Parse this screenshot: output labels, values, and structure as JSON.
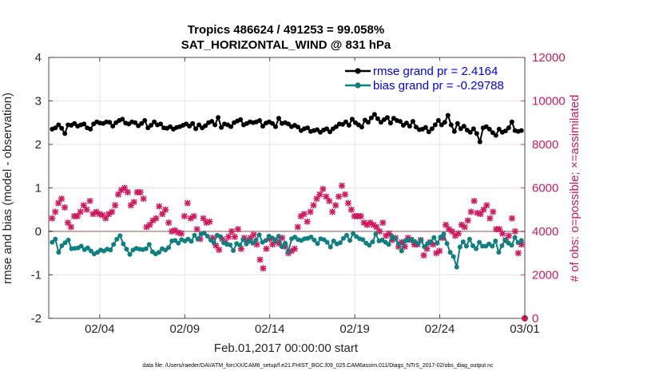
{
  "chart_data": {
    "type": "line",
    "title_line1": "Tropics 486624 / 491253 = 99.058%",
    "title_line2": "SAT_HORIZONTAL_WIND @ 831 hPa",
    "xlabel": "Feb.01,2017 00:00:00 start",
    "ylabel_left": "rmse and bias (model - observation)",
    "ylabel_right": "# of obs: o=possible; ×=assimilated",
    "footer": "data file: /Users/raeder/DAI/ATM_forcXX/CAM6_setup/f.e21.FHIST_BGC.f09_025.CAM6assim.011/Diags_NTrS_2017-02/obs_diag_output.nc",
    "x_ticks": [
      "02/04",
      "02/09",
      "02/14",
      "02/19",
      "02/24",
      "03/01"
    ],
    "x_tick_positions_days": [
      3,
      8,
      13,
      18,
      23,
      28
    ],
    "xlim_days": [
      0,
      28
    ],
    "ylim_left": [
      -2,
      4
    ],
    "y_ticks_left": [
      "-2",
      "-1",
      "0",
      "1",
      "2",
      "3",
      "4"
    ],
    "ylim_right": [
      0,
      12000
    ],
    "y_ticks_right": [
      "0",
      "2000",
      "4000",
      "6000",
      "8000",
      "10000",
      "12000"
    ],
    "colors": {
      "rmse": "#000000",
      "bias": "#0f7f80",
      "obs": "#d11a5e",
      "zero_line": "#c9a9a9",
      "legend_text": "#0000ff"
    },
    "series": [
      {
        "name": "rmse grand pr = 2.4164",
        "axis": "left",
        "values": [
          2.35,
          2.38,
          2.45,
          2.37,
          2.25,
          2.45,
          2.44,
          2.48,
          2.42,
          2.45,
          2.47,
          2.38,
          2.35,
          2.47,
          2.52,
          2.49,
          2.48,
          2.52,
          2.51,
          2.42,
          2.5,
          2.55,
          2.58,
          2.49,
          2.47,
          2.52,
          2.5,
          2.43,
          2.48,
          2.55,
          2.38,
          2.44,
          2.52,
          2.45,
          2.47,
          2.38,
          2.37,
          2.41,
          2.35,
          2.39,
          2.41,
          2.44,
          2.47,
          2.42,
          2.48,
          2.36,
          2.45,
          2.38,
          2.43,
          2.5,
          2.53,
          2.45,
          2.62,
          2.39,
          2.47,
          2.45,
          2.41,
          2.5,
          2.54,
          2.57,
          2.45,
          2.48,
          2.52,
          2.5,
          2.52,
          2.55,
          2.42,
          2.49,
          2.52,
          2.48,
          2.41,
          2.6,
          2.48,
          2.5,
          2.47,
          2.41,
          2.44,
          2.4,
          2.32,
          2.36,
          2.38,
          2.3,
          2.32,
          2.34,
          2.28,
          2.33,
          2.36,
          2.29,
          2.36,
          2.41,
          2.47,
          2.46,
          2.52,
          2.44,
          2.58,
          2.5,
          2.45,
          2.4,
          2.56,
          2.51,
          2.61,
          2.69,
          2.59,
          2.51,
          2.57,
          2.62,
          2.49,
          2.6,
          2.55,
          2.53,
          2.44,
          2.49,
          2.42,
          2.53,
          2.4,
          2.34,
          2.35,
          2.39,
          2.29,
          2.36,
          2.45,
          2.55,
          2.45,
          2.51,
          2.67,
          2.45,
          2.3,
          2.48,
          2.36,
          2.42,
          2.33,
          2.28,
          2.36,
          2.25,
          2.06,
          2.38,
          2.41,
          2.35,
          2.27,
          2.21,
          2.35,
          2.28,
          2.31,
          2.38,
          2.52,
          2.32,
          2.3,
          2.32
        ]
      },
      {
        "name": "bias grand pr = -0.29788",
        "axis": "left",
        "values": [
          -0.25,
          -0.18,
          -0.48,
          -0.33,
          -0.26,
          -0.2,
          -0.4,
          -0.39,
          -0.38,
          -0.34,
          -0.42,
          -0.38,
          -0.45,
          -0.52,
          -0.48,
          -0.43,
          -0.45,
          -0.41,
          -0.43,
          -0.3,
          -0.18,
          -0.1,
          -0.29,
          -0.41,
          -0.53,
          -0.43,
          -0.39,
          -0.41,
          -0.42,
          -0.4,
          -0.3,
          -0.47,
          -0.52,
          -0.48,
          -0.4,
          -0.43,
          -0.37,
          -0.22,
          -0.21,
          -0.27,
          -0.19,
          -0.22,
          -0.18,
          -0.23,
          -0.09,
          -0.18,
          -0.06,
          -0.04,
          -0.11,
          -0.2,
          -0.26,
          -0.09,
          -0.12,
          -0.26,
          -0.3,
          -0.31,
          -0.44,
          -0.28,
          -0.32,
          -0.19,
          -0.29,
          -0.21,
          -0.27,
          -0.2,
          -0.08,
          -0.25,
          -0.21,
          -0.11,
          -0.15,
          -0.23,
          -0.11,
          -0.35,
          -0.27,
          -0.46,
          -0.17,
          -0.13,
          -0.19,
          -0.21,
          -0.17,
          -0.16,
          -0.13,
          -0.2,
          -0.28,
          -0.17,
          -0.19,
          -0.25,
          -0.36,
          -0.22,
          -0.29,
          -0.26,
          -0.16,
          -0.09,
          -0.21,
          -0.05,
          -0.12,
          -0.17,
          -0.19,
          -0.27,
          -0.32,
          -0.24,
          -0.06,
          -0.22,
          -0.2,
          -0.25,
          -0.3,
          -0.11,
          -0.17,
          -0.28,
          -0.45,
          -0.22,
          -0.21,
          -0.18,
          -0.23,
          -0.29,
          -0.2,
          -0.35,
          -0.28,
          -0.24,
          -0.14,
          -0.27,
          -0.13,
          -0.06,
          -0.28,
          -0.48,
          -0.58,
          -0.82,
          -0.36,
          -0.24,
          -0.34,
          -0.18,
          -0.33,
          -0.4,
          -0.25,
          -0.34,
          -0.34,
          -0.29,
          -0.34,
          -0.22,
          -0.48,
          -0.33,
          -0.2,
          -0.27,
          -0.32,
          -0.14,
          -0.26,
          -0.21
        ]
      },
      {
        "name": "# of obs assimilated",
        "axis": "right",
        "values": [
          4600,
          4900,
          5300,
          5500,
          5100,
          4400,
          4200,
          4700,
          4700,
          4900,
          5200,
          5000,
          5400,
          4800,
          4900,
          4800,
          4750,
          4600,
          4800,
          4900,
          5200,
          5700,
          5900,
          6000,
          5800,
          5200,
          5350,
          5800,
          5800,
          5500,
          4200,
          4300,
          4500,
          4600,
          5150,
          4800,
          5000,
          4400,
          4000,
          4050,
          3950,
          3900,
          4700,
          5300,
          4600,
          4700,
          4100,
          3650,
          4600,
          4400,
          4450,
          3700,
          3350,
          3150,
          3650,
          3500,
          3750,
          4000,
          3750,
          4100,
          3200,
          3700,
          3550,
          3700,
          3850,
          3400,
          2700,
          2300,
          3200,
          3650,
          3400,
          3600,
          3450,
          3700,
          3300,
          3000,
          3100,
          3200,
          4200,
          4700,
          4800,
          4450,
          4900,
          5200,
          5500,
          5700,
          5950,
          5600,
          5400,
          4900,
          5200,
          5600,
          6100,
          5700,
          5300,
          5000,
          4700,
          4700,
          4700,
          4400,
          4300,
          4400,
          4300,
          4200,
          4000,
          4400,
          3800,
          3900,
          3600,
          3700,
          3300,
          3500,
          3300,
          3700,
          3600,
          3400,
          3400,
          3600,
          2900,
          3200,
          3500,
          3400,
          3000,
          3100,
          3700,
          4300,
          4100,
          4000,
          3800,
          3900,
          4300,
          4200,
          4500,
          4900,
          5400,
          4850,
          4800,
          5000,
          5200,
          4600,
          4900,
          4100,
          4100,
          3900,
          3600,
          3800,
          4600,
          4000,
          3000,
          3400
        ]
      },
      {
        "name": "# of obs possible",
        "axis": "right",
        "values": [
          0
        ]
      }
    ]
  }
}
